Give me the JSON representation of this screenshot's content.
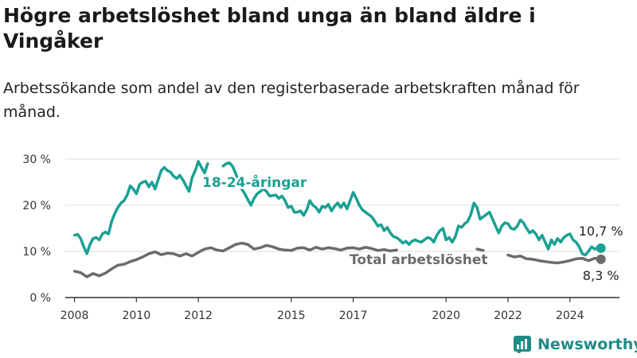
{
  "title": "Högre arbetslöshet bland unga än bland äldre i Vingåker",
  "subtitle": "Arbetssökande som andel av den registerbaserade arbetskraften månad för månad.",
  "brand": {
    "name": "Newsworthy",
    "color": "#1c8c86"
  },
  "chart_data": {
    "type": "line",
    "ylim": [
      0,
      30
    ],
    "y_ticks": [
      "0 %",
      "10 %",
      "20 %",
      "30 %"
    ],
    "y_tick_values": [
      0,
      10,
      20,
      30
    ],
    "x_tick_labels": [
      "2008",
      "2010",
      "2012",
      "2015",
      "2017",
      "2020",
      "2022",
      "2024"
    ],
    "x_tick_values": [
      2008.0,
      2010.0,
      2012.0,
      2015.0,
      2017.0,
      2020.0,
      2022.0,
      2024.0
    ],
    "grid": true,
    "series": [
      {
        "name": "18-24-åringar",
        "color": "#1aa193",
        "end_label": "10,7 %",
        "values": [
          [
            2008.0,
            13.5
          ],
          [
            2008.1,
            13.7
          ],
          [
            2008.2,
            12.8
          ],
          [
            2008.3,
            11.0
          ],
          [
            2008.4,
            9.5
          ],
          [
            2008.5,
            11.5
          ],
          [
            2008.6,
            12.8
          ],
          [
            2008.7,
            13.0
          ],
          [
            2008.8,
            12.5
          ],
          [
            2008.9,
            13.8
          ],
          [
            2009.0,
            14.2
          ],
          [
            2009.1,
            13.8
          ],
          [
            2009.2,
            16.5
          ],
          [
            2009.3,
            18.2
          ],
          [
            2009.4,
            19.5
          ],
          [
            2009.5,
            20.5
          ],
          [
            2009.6,
            21.0
          ],
          [
            2009.7,
            22.2
          ],
          [
            2009.8,
            24.2
          ],
          [
            2009.9,
            23.5
          ],
          [
            2010.0,
            22.5
          ],
          [
            2010.1,
            24.5
          ],
          [
            2010.2,
            25.0
          ],
          [
            2010.3,
            25.2
          ],
          [
            2010.4,
            24.0
          ],
          [
            2010.5,
            25.0
          ],
          [
            2010.6,
            23.5
          ],
          [
            2010.7,
            25.5
          ],
          [
            2010.8,
            27.5
          ],
          [
            2010.9,
            28.2
          ],
          [
            2011.0,
            27.5
          ],
          [
            2011.1,
            27.2
          ],
          [
            2011.2,
            26.3
          ],
          [
            2011.3,
            25.8
          ],
          [
            2011.4,
            26.5
          ],
          [
            2011.5,
            25.5
          ],
          [
            2011.6,
            24.2
          ],
          [
            2011.7,
            23.0
          ],
          [
            2011.8,
            26.0
          ],
          [
            2011.9,
            27.5
          ],
          [
            2012.0,
            29.5
          ],
          [
            2012.1,
            28.2
          ],
          [
            2012.2,
            27.0
          ],
          [
            2012.3,
            29.0
          ],
          [
            2012.8,
            28.5
          ],
          [
            2012.9,
            29.0
          ],
          [
            2013.0,
            29.2
          ],
          [
            2013.1,
            28.5
          ],
          [
            2013.2,
            27.0
          ],
          [
            2013.3,
            25.0
          ],
          [
            2013.4,
            23.5
          ],
          [
            2013.5,
            22.5
          ],
          [
            2013.6,
            21.2
          ],
          [
            2013.7,
            20.0
          ],
          [
            2013.8,
            21.5
          ],
          [
            2013.9,
            22.5
          ],
          [
            2014.0,
            23.0
          ],
          [
            2014.1,
            23.5
          ],
          [
            2014.2,
            23.0
          ],
          [
            2014.3,
            22.0
          ],
          [
            2014.5,
            22.2
          ],
          [
            2014.6,
            21.5
          ],
          [
            2014.7,
            22.0
          ],
          [
            2014.8,
            21.0
          ],
          [
            2014.9,
            19.5
          ],
          [
            2015.0,
            19.8
          ],
          [
            2015.1,
            18.5
          ],
          [
            2015.2,
            18.5
          ],
          [
            2015.3,
            18.8
          ],
          [
            2015.4,
            17.8
          ],
          [
            2015.5,
            19.0
          ],
          [
            2015.6,
            21.0
          ],
          [
            2015.7,
            20.0
          ],
          [
            2015.8,
            19.5
          ],
          [
            2015.9,
            18.5
          ],
          [
            2016.0,
            19.8
          ],
          [
            2016.1,
            19.5
          ],
          [
            2016.2,
            20.2
          ],
          [
            2016.3,
            18.8
          ],
          [
            2016.4,
            19.8
          ],
          [
            2016.5,
            20.5
          ],
          [
            2016.6,
            19.5
          ],
          [
            2016.7,
            20.5
          ],
          [
            2016.8,
            19.2
          ],
          [
            2016.9,
            21.0
          ],
          [
            2017.0,
            22.8
          ],
          [
            2017.1,
            21.5
          ],
          [
            2017.2,
            20.0
          ],
          [
            2017.3,
            19.0
          ],
          [
            2017.4,
            18.5
          ],
          [
            2017.5,
            18.0
          ],
          [
            2017.6,
            17.5
          ],
          [
            2017.7,
            16.5
          ],
          [
            2017.8,
            15.5
          ],
          [
            2017.9,
            15.8
          ],
          [
            2018.0,
            14.5
          ],
          [
            2018.1,
            15.2
          ],
          [
            2018.2,
            14.0
          ],
          [
            2018.3,
            13.2
          ],
          [
            2018.4,
            13.0
          ],
          [
            2018.5,
            12.5
          ],
          [
            2018.6,
            11.8
          ],
          [
            2018.7,
            12.2
          ],
          [
            2018.8,
            11.5
          ],
          [
            2018.9,
            12.2
          ],
          [
            2019.0,
            12.5
          ],
          [
            2019.1,
            12.2
          ],
          [
            2019.2,
            12.0
          ],
          [
            2019.3,
            12.5
          ],
          [
            2019.4,
            13.0
          ],
          [
            2019.5,
            12.8
          ],
          [
            2019.6,
            12.0
          ],
          [
            2019.7,
            13.5
          ],
          [
            2019.8,
            14.5
          ],
          [
            2019.9,
            15.0
          ],
          [
            2020.0,
            12.5
          ],
          [
            2020.1,
            13.0
          ],
          [
            2020.2,
            12.0
          ],
          [
            2020.3,
            13.2
          ],
          [
            2020.4,
            15.5
          ],
          [
            2020.5,
            15.2
          ],
          [
            2020.6,
            16.0
          ],
          [
            2020.7,
            16.5
          ],
          [
            2020.8,
            18.0
          ],
          [
            2020.9,
            20.5
          ],
          [
            2021.0,
            19.5
          ],
          [
            2021.1,
            17.0
          ],
          [
            2021.2,
            17.5
          ],
          [
            2021.3,
            18.0
          ],
          [
            2021.4,
            18.5
          ],
          [
            2021.5,
            17.0
          ],
          [
            2021.6,
            15.5
          ],
          [
            2021.7,
            14.0
          ],
          [
            2021.8,
            15.5
          ],
          [
            2021.9,
            16.2
          ],
          [
            2022.0,
            16.0
          ],
          [
            2022.1,
            15.0
          ],
          [
            2022.2,
            14.8
          ],
          [
            2022.3,
            15.5
          ],
          [
            2022.4,
            16.8
          ],
          [
            2022.5,
            16.2
          ],
          [
            2022.6,
            15.0
          ],
          [
            2022.7,
            14.0
          ],
          [
            2022.8,
            14.5
          ],
          [
            2022.9,
            13.8
          ],
          [
            2023.0,
            12.5
          ],
          [
            2023.1,
            13.5
          ],
          [
            2023.2,
            12.0
          ],
          [
            2023.3,
            10.5
          ],
          [
            2023.4,
            12.5
          ],
          [
            2023.5,
            11.5
          ],
          [
            2023.6,
            12.8
          ],
          [
            2023.7,
            12.0
          ],
          [
            2023.8,
            13.0
          ],
          [
            2023.9,
            13.5
          ],
          [
            2024.0,
            13.8
          ],
          [
            2024.1,
            12.5
          ],
          [
            2024.2,
            12.0
          ],
          [
            2024.3,
            11.0
          ],
          [
            2024.4,
            9.5
          ],
          [
            2024.5,
            9.2
          ],
          [
            2024.6,
            10.0
          ],
          [
            2024.7,
            11.0
          ],
          [
            2024.8,
            10.5
          ],
          [
            2024.9,
            10.8
          ],
          [
            2025.0,
            10.7
          ]
        ]
      },
      {
        "name": "Total arbetslöshet",
        "color": "#6b6b6e",
        "end_label": "8,3 %",
        "values": [
          [
            2008.0,
            5.7
          ],
          [
            2008.2,
            5.4
          ],
          [
            2008.4,
            4.5
          ],
          [
            2008.6,
            5.2
          ],
          [
            2008.8,
            4.7
          ],
          [
            2009.0,
            5.3
          ],
          [
            2009.2,
            6.2
          ],
          [
            2009.4,
            7.0
          ],
          [
            2009.6,
            7.2
          ],
          [
            2009.8,
            7.8
          ],
          [
            2010.0,
            8.2
          ],
          [
            2010.2,
            8.8
          ],
          [
            2010.4,
            9.5
          ],
          [
            2010.6,
            9.9
          ],
          [
            2010.8,
            9.3
          ],
          [
            2011.0,
            9.6
          ],
          [
            2011.2,
            9.5
          ],
          [
            2011.4,
            9.0
          ],
          [
            2011.6,
            9.5
          ],
          [
            2011.8,
            9.0
          ],
          [
            2012.0,
            9.8
          ],
          [
            2012.2,
            10.5
          ],
          [
            2012.4,
            10.8
          ],
          [
            2012.6,
            10.3
          ],
          [
            2012.8,
            10.1
          ],
          [
            2013.0,
            10.8
          ],
          [
            2013.2,
            11.5
          ],
          [
            2013.4,
            11.8
          ],
          [
            2013.6,
            11.5
          ],
          [
            2013.8,
            10.5
          ],
          [
            2014.0,
            10.8
          ],
          [
            2014.2,
            11.3
          ],
          [
            2014.4,
            11.0
          ],
          [
            2014.6,
            10.5
          ],
          [
            2014.8,
            10.3
          ],
          [
            2015.0,
            10.2
          ],
          [
            2015.2,
            10.7
          ],
          [
            2015.4,
            10.8
          ],
          [
            2015.6,
            10.3
          ],
          [
            2015.8,
            10.9
          ],
          [
            2016.0,
            10.5
          ],
          [
            2016.2,
            10.8
          ],
          [
            2016.4,
            10.6
          ],
          [
            2016.6,
            10.3
          ],
          [
            2016.8,
            10.7
          ],
          [
            2017.0,
            10.8
          ],
          [
            2017.2,
            10.5
          ],
          [
            2017.4,
            10.9
          ],
          [
            2017.6,
            10.6
          ],
          [
            2017.8,
            10.2
          ],
          [
            2018.0,
            10.4
          ],
          [
            2018.2,
            10.1
          ],
          [
            2018.4,
            10.3
          ],
          [
            2021.0,
            10.5
          ],
          [
            2021.2,
            10.2
          ],
          [
            2022.0,
            9.2
          ],
          [
            2022.2,
            8.8
          ],
          [
            2022.4,
            9.0
          ],
          [
            2022.6,
            8.4
          ],
          [
            2022.8,
            8.3
          ],
          [
            2023.0,
            8.0
          ],
          [
            2023.2,
            7.8
          ],
          [
            2023.4,
            7.6
          ],
          [
            2023.6,
            7.5
          ],
          [
            2023.8,
            7.7
          ],
          [
            2024.0,
            8.0
          ],
          [
            2024.2,
            8.4
          ],
          [
            2024.4,
            8.5
          ],
          [
            2024.6,
            8.0
          ],
          [
            2024.8,
            8.5
          ],
          [
            2025.0,
            8.3
          ]
        ]
      }
    ]
  }
}
